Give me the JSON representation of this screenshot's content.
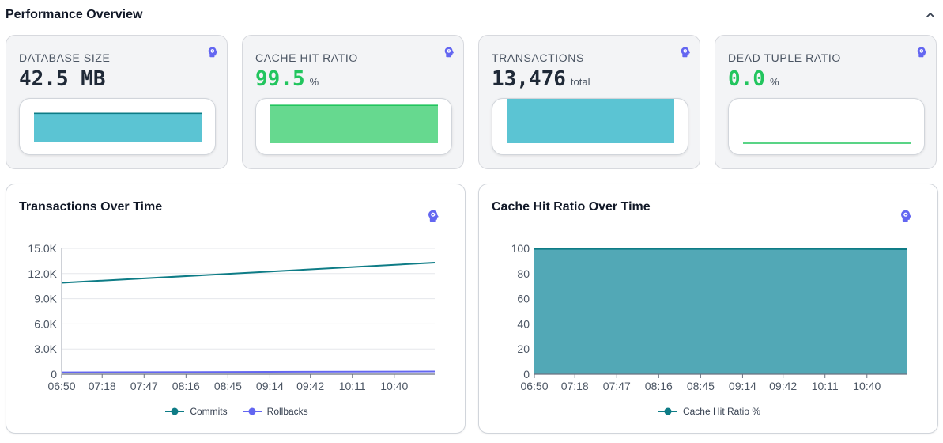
{
  "section": {
    "title": "Performance Overview",
    "collapse_icon": "chevron-up-icon"
  },
  "colors": {
    "teal_line": "#0e7c86",
    "teal_fill": "#5bc4d3",
    "green_line": "#22c55e",
    "green_fill": "#66d98f",
    "purple_line": "#6366f1",
    "cache_fill": "#52a8b6",
    "icon": "#6366f1"
  },
  "stats": [
    {
      "label": "DATABASE SIZE",
      "value": "42.5 MB",
      "unit": "",
      "icon": "ai-brain-icon"
    },
    {
      "label": "CACHE HIT RATIO",
      "value": "99.5",
      "unit": "%",
      "icon": "ai-brain-icon"
    },
    {
      "label": "TRANSACTIONS",
      "value": "13,476",
      "unit": "total",
      "icon": "ai-brain-icon"
    },
    {
      "label": "DEAD TUPLE RATIO",
      "value": "0.0",
      "unit": "%",
      "icon": "ai-brain-icon"
    }
  ],
  "charts": {
    "transactions": {
      "title": "Transactions Over Time",
      "icon": "ai-brain-icon",
      "legend": [
        "Commits",
        "Rollbacks"
      ]
    },
    "cache": {
      "title": "Cache Hit Ratio Over Time",
      "icon": "ai-brain-icon",
      "legend": [
        "Cache Hit Ratio %"
      ]
    }
  },
  "chart_data": [
    {
      "type": "area",
      "title": "",
      "series": [
        {
          "name": "",
          "values": [
            42.5,
            42.5,
            42.5
          ]
        }
      ],
      "ylim": [
        0,
        50
      ]
    },
    {
      "type": "area",
      "title": "",
      "series": [
        {
          "name": "",
          "values": [
            99.6,
            99.6,
            99.5
          ]
        }
      ],
      "ylim": [
        0,
        100
      ]
    },
    {
      "type": "area",
      "title": "",
      "series": [
        {
          "name": "",
          "values": [
            12400,
            12900,
            13476
          ]
        }
      ],
      "ylim": [
        0,
        15000
      ]
    },
    {
      "type": "line",
      "title": "",
      "series": [
        {
          "name": "",
          "values": [
            0.0,
            0.0,
            0.0
          ]
        }
      ],
      "ylim": [
        0,
        100
      ]
    },
    {
      "type": "line",
      "title": "Transactions Over Time",
      "x": [
        "06:50",
        "07:18",
        "07:47",
        "08:16",
        "08:45",
        "09:14",
        "09:42",
        "10:11",
        "10:40"
      ],
      "x_minutes": [
        410,
        438,
        467,
        496,
        525,
        554,
        582,
        611,
        640
      ],
      "x_range": [
        410,
        668
      ],
      "yticks": [
        "0",
        "3.0K",
        "6.0K",
        "9.0K",
        "12.0K",
        "15.0K"
      ],
      "ylim": [
        0,
        15000
      ],
      "series": [
        {
          "name": "Commits",
          "color": "#0e7c86",
          "points": [
            [
              410,
              10900
            ],
            [
              668,
              13300
            ]
          ]
        },
        {
          "name": "Rollbacks",
          "color": "#6366f1",
          "points": [
            [
              410,
              230
            ],
            [
              668,
              330
            ]
          ]
        }
      ],
      "grid": true,
      "legend": "bottom"
    },
    {
      "type": "area",
      "title": "Cache Hit Ratio Over Time",
      "x": [
        "06:50",
        "07:18",
        "07:47",
        "08:16",
        "08:45",
        "09:14",
        "09:42",
        "10:11",
        "10:40"
      ],
      "x_minutes": [
        410,
        438,
        467,
        496,
        525,
        554,
        582,
        611,
        640
      ],
      "x_range": [
        410,
        668
      ],
      "yticks": [
        "0",
        "20",
        "40",
        "60",
        "80",
        "100"
      ],
      "ylim": [
        0,
        100
      ],
      "series": [
        {
          "name": "Cache Hit Ratio %",
          "color": "#0e7c86",
          "points": [
            [
              410,
              99.6
            ],
            [
              620,
              99.6
            ],
            [
              668,
              99.4
            ]
          ]
        }
      ],
      "grid": true,
      "legend": "bottom"
    }
  ]
}
